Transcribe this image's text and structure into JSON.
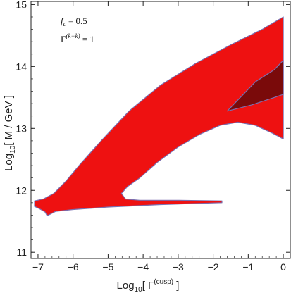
{
  "chart_data": {
    "type": "area",
    "xlabel": "Log10[ Γ(cusp) ]",
    "ylabel": "Log10[ M / GeV ]",
    "x_axis": {
      "base": "Log",
      "sub": "10",
      "rest": "[ Γ",
      "sup": "(cusp)",
      "close": " ]"
    },
    "y_axis": {
      "base": "Log",
      "sub": "10",
      "rest": "[ M / GeV ]"
    },
    "xlim": [
      -7.2,
      0.2
    ],
    "ylim": [
      10.9,
      15.05
    ],
    "xticks": [
      -7,
      -6,
      -5,
      -4,
      -3,
      -2,
      -1,
      0
    ],
    "yticks": [
      11,
      12,
      13,
      14,
      15
    ],
    "grid": false,
    "annotations": [
      {
        "name": "f-c",
        "base": "f",
        "sub": "c",
        "rest": " = 0.5"
      },
      {
        "name": "gamma-kk",
        "base": "Γ",
        "sup": "(k−k)",
        "rest": " = 1"
      }
    ],
    "colors": {
      "outer_region": "#ee1111",
      "inner_region": "#7a0a0a",
      "outline": "#7a6fb0"
    },
    "regions": [
      {
        "name": "outer-allowed-region",
        "fill": "#ee1111",
        "outline": [
          [
            -7.1,
            11.83
          ],
          [
            -6.85,
            11.86
          ],
          [
            -6.55,
            11.95
          ],
          [
            -6.2,
            12.15
          ],
          [
            -5.8,
            12.42
          ],
          [
            -5.2,
            12.8
          ],
          [
            -4.4,
            13.28
          ],
          [
            -3.5,
            13.7
          ],
          [
            -2.5,
            14.05
          ],
          [
            -1.5,
            14.35
          ],
          [
            -0.6,
            14.6
          ],
          [
            0.0,
            14.8
          ],
          [
            0.0,
            12.83
          ],
          [
            -0.3,
            12.92
          ],
          [
            -0.8,
            13.05
          ],
          [
            -1.3,
            13.1
          ],
          [
            -1.8,
            13.05
          ],
          [
            -2.4,
            12.9
          ],
          [
            -3.0,
            12.7
          ],
          [
            -3.6,
            12.45
          ],
          [
            -4.1,
            12.2
          ],
          [
            -4.45,
            12.06
          ],
          [
            -4.62,
            11.95
          ],
          [
            -4.5,
            11.86
          ],
          [
            -4.1,
            11.84
          ],
          [
            -3.0,
            11.84
          ],
          [
            -1.75,
            11.83
          ],
          [
            -1.75,
            11.8
          ],
          [
            -3.5,
            11.77
          ],
          [
            -5.0,
            11.73
          ],
          [
            -6.0,
            11.69
          ],
          [
            -6.5,
            11.66
          ],
          [
            -6.7,
            11.6
          ],
          [
            -6.75,
            11.6
          ],
          [
            -6.8,
            11.65
          ],
          [
            -6.95,
            11.7
          ],
          [
            -7.1,
            11.74
          ]
        ]
      },
      {
        "name": "inner-dark-region",
        "fill": "#7a0a0a",
        "outline": [
          [
            -1.6,
            13.28
          ],
          [
            -0.8,
            13.75
          ],
          [
            -0.25,
            13.95
          ],
          [
            0.0,
            14.1
          ],
          [
            0.0,
            13.55
          ],
          [
            -0.25,
            13.5
          ],
          [
            -0.9,
            13.38
          ]
        ]
      }
    ]
  }
}
